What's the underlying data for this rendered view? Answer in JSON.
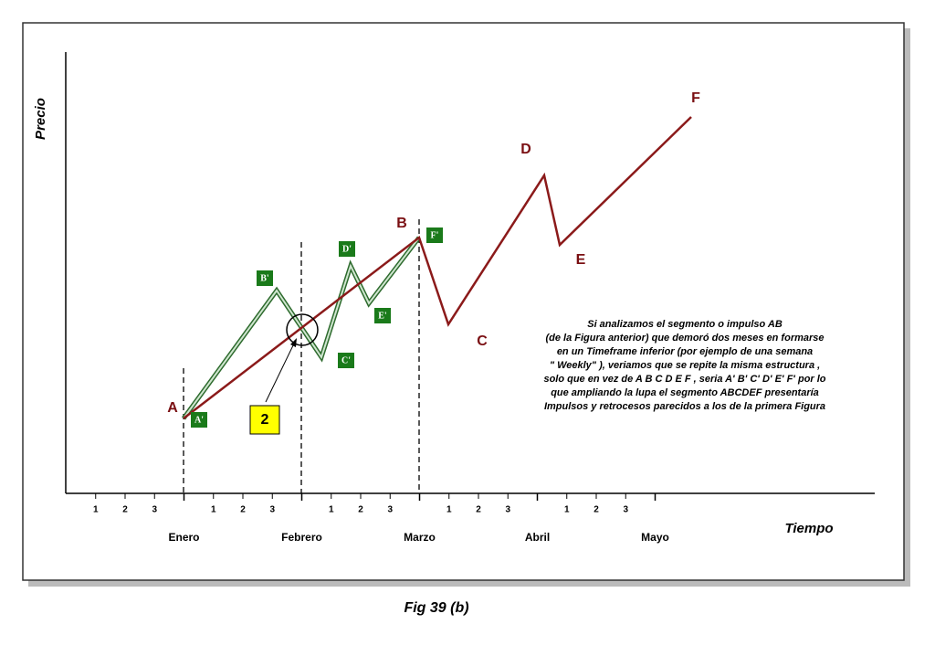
{
  "axis_labels": {
    "y": "Precio",
    "x": "Tiempo"
  },
  "months": [
    "Enero",
    "Febrero",
    "Marzo",
    "Abril",
    "Mayo"
  ],
  "week_labels": [
    "1",
    "2",
    "3",
    "1",
    "2",
    "3",
    "1",
    "2",
    "3",
    "1",
    "2",
    "3",
    "1",
    "2",
    "3"
  ],
  "wave_labels": [
    "A",
    "B",
    "C",
    "D",
    "E",
    "F"
  ],
  "sub_wave_labels": [
    "A'",
    "B'",
    "C'",
    "D'",
    "E'",
    "F'"
  ],
  "callout": "2",
  "note": [
    "Si analizamos el segmento o  impulso AB",
    "(de la Figura anterior)  que demoró dos meses en formarse",
    "en un Timeframe inferior  (por ejemplo de una semana",
    "\" Weekly\" ),   veriamos que se repite la misma estructura ,",
    "solo que en vez de A B C D E F , seria A' B' C' D' E' F' por lo",
    "que ampliando la lupa el segmento ABCDEF  presentaría",
    "Impulsos y retrocesos parecidos a los de la primera Figura"
  ],
  "caption": "Fig 39 (b)"
}
